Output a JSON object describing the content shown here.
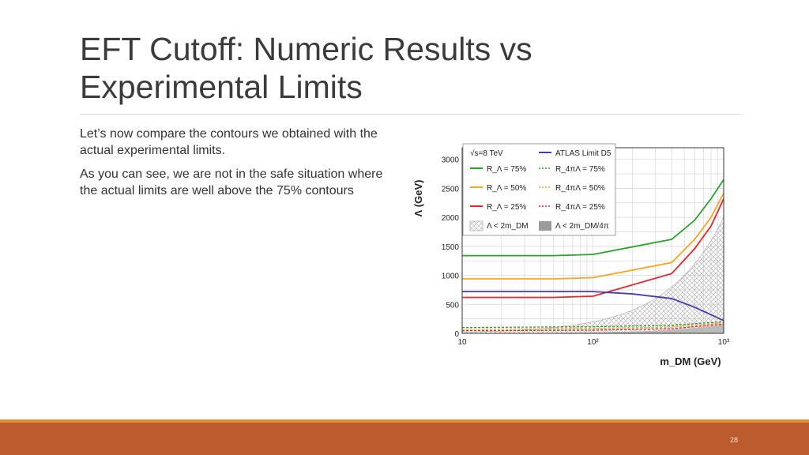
{
  "slide": {
    "title_line1": "EFT Cutoff: Numeric Results vs",
    "title_line2": "Experimental Limits",
    "paragraphs": [
      "Let’s now compare the contours we obtained with the actual experimental limits.",
      "As you can see, we are not in the safe situation where the actual limits are well above the 75% contours"
    ],
    "page_number": "28"
  },
  "colors": {
    "footer": "#bc5b2e",
    "footer_stripe": "#e58e2f",
    "green": "#2ca02c",
    "orange": "#f5a623",
    "red": "#e8262e",
    "atlas": "#4b3aa8",
    "excluded": "#9b9b9b"
  },
  "chart_data": {
    "type": "line",
    "ylabel": "Λ (GeV)",
    "xlabel": "m_DM (GeV)",
    "xscale": "log",
    "xlim": [
      10,
      1000
    ],
    "ylim": [
      0,
      3200
    ],
    "x_ticks": [
      {
        "value": 10,
        "label": "10"
      },
      {
        "value": 100,
        "label": "10²"
      },
      {
        "value": 1000,
        "label": "10³"
      }
    ],
    "y_ticks": [
      0,
      500,
      1000,
      1500,
      2000,
      2500,
      3000
    ],
    "grid": true,
    "legend": {
      "placement": "top-left",
      "header": "√s=8 TeV",
      "entries": [
        {
          "label": "ATLAS Limit D5",
          "color": "#4b3aa8",
          "style": "solid"
        },
        {
          "label": "R_Λ = 75%",
          "color": "#2ca02c",
          "style": "solid"
        },
        {
          "label": "R_4πΛ = 75%",
          "color": "#2ca02c",
          "style": "dashed"
        },
        {
          "label": "R_Λ = 50%",
          "color": "#f5a623",
          "style": "solid"
        },
        {
          "label": "R_4πΛ = 50%",
          "color": "#f5a623",
          "style": "dashed"
        },
        {
          "label": "R_Λ = 25%",
          "color": "#e8262e",
          "style": "solid"
        },
        {
          "label": "R_4πΛ = 25%",
          "color": "#e8262e",
          "style": "dashed"
        },
        {
          "label": "Λ < 2m_DM",
          "color": "#9b9b9b",
          "style": "hatch"
        },
        {
          "label": "Λ < 2m_DM/4π",
          "color": "#9b9b9b",
          "style": "fill"
        }
      ]
    },
    "series": [
      {
        "label_ref": 1,
        "color": "#2ca02c",
        "dash": false,
        "points": [
          [
            10,
            1340
          ],
          [
            50,
            1340
          ],
          [
            100,
            1360
          ],
          [
            400,
            1620
          ],
          [
            600,
            1950
          ],
          [
            800,
            2320
          ],
          [
            1000,
            2650
          ]
        ]
      },
      {
        "label_ref": 3,
        "color": "#f5a623",
        "dash": false,
        "points": [
          [
            10,
            940
          ],
          [
            50,
            940
          ],
          [
            100,
            960
          ],
          [
            400,
            1220
          ],
          [
            600,
            1620
          ],
          [
            800,
            2000
          ],
          [
            1000,
            2420
          ]
        ]
      },
      {
        "label_ref": 5,
        "color": "#e8262e",
        "dash": false,
        "points": [
          [
            10,
            620
          ],
          [
            50,
            620
          ],
          [
            100,
            640
          ],
          [
            400,
            1030
          ],
          [
            600,
            1460
          ],
          [
            800,
            1850
          ],
          [
            1000,
            2320
          ]
        ]
      },
      {
        "label_ref": 0,
        "color": "#4b3aa8",
        "dash": false,
        "points": [
          [
            10,
            720
          ],
          [
            30,
            720
          ],
          [
            100,
            720
          ],
          [
            200,
            680
          ],
          [
            400,
            600
          ],
          [
            600,
            450
          ],
          [
            1000,
            220
          ]
        ]
      },
      {
        "label_ref": 2,
        "color": "#2ca02c",
        "dash": true,
        "points": [
          [
            10,
            100
          ],
          [
            100,
            115
          ],
          [
            400,
            140
          ],
          [
            1000,
            200
          ]
        ]
      },
      {
        "label_ref": 4,
        "color": "#f5a623",
        "dash": true,
        "points": [
          [
            10,
            70
          ],
          [
            100,
            85
          ],
          [
            400,
            110
          ],
          [
            1000,
            180
          ]
        ]
      },
      {
        "label_ref": 6,
        "color": "#e8262e",
        "dash": true,
        "points": [
          [
            10,
            45
          ],
          [
            100,
            55
          ],
          [
            400,
            80
          ],
          [
            1000,
            160
          ]
        ]
      }
    ]
  }
}
